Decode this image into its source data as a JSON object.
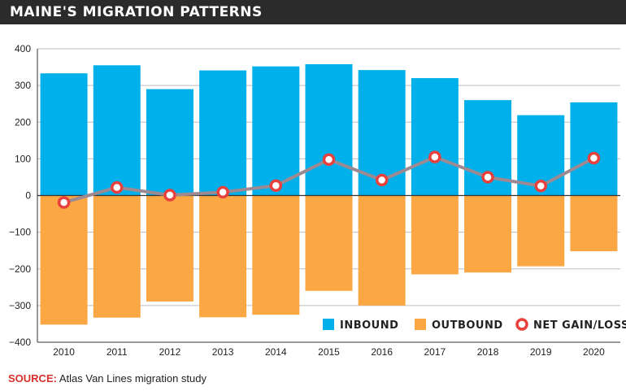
{
  "title": "MAINE'S MIGRATION PATTERNS",
  "source": {
    "label": "SOURCE:",
    "text": "Atlas Van Lines migration study"
  },
  "colors": {
    "inbound": "#00b0ea",
    "outbound": "#fba744",
    "net_line": "#9c8a92",
    "net_marker": "#e8403c",
    "title_bg": "#2b2b2b",
    "source_label": "#d9302c"
  },
  "chart_data": {
    "type": "bar",
    "title": "",
    "xlabel": "",
    "ylabel": "",
    "categories": [
      "2010",
      "2011",
      "2012",
      "2013",
      "2014",
      "2015",
      "2016",
      "2017",
      "2018",
      "2019",
      "2020"
    ],
    "ylim": [
      -400,
      400
    ],
    "yticks": [
      "400",
      "300",
      "200",
      "100",
      "0",
      "−100",
      "−200",
      "−300",
      "−400"
    ],
    "ytick_values": [
      400,
      300,
      200,
      100,
      0,
      -100,
      -200,
      -300,
      -400
    ],
    "grid": true,
    "legend_position": "bottom-right",
    "series": [
      {
        "name": "INBOUND",
        "type": "bar",
        "values": [
          333,
          355,
          290,
          341,
          352,
          358,
          342,
          320,
          260,
          219,
          254
        ]
      },
      {
        "name": "OUTBOUND",
        "type": "bar",
        "values": [
          -352,
          -333,
          -289,
          -332,
          -325,
          -260,
          -300,
          -215,
          -210,
          -193,
          -152
        ]
      },
      {
        "name": "NET GAIN/LOSS",
        "type": "line",
        "values": [
          -19,
          22,
          1,
          9,
          27,
          98,
          42,
          105,
          50,
          26,
          102
        ]
      }
    ]
  }
}
